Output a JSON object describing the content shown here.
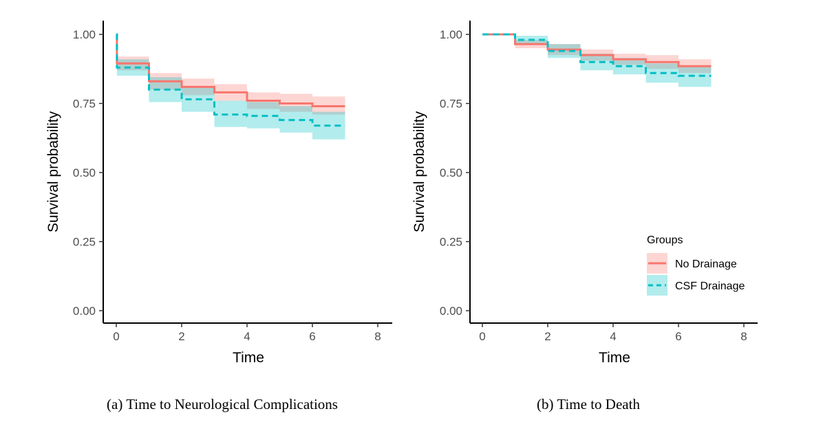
{
  "figure": {
    "legend": {
      "title": "Groups",
      "items": [
        {
          "label": "No Drainage",
          "color": "#F8766D",
          "fill": "#F8766D",
          "dash": "solid"
        },
        {
          "label": "CSF Drainage",
          "color": "#00BFC4",
          "fill": "#00BFC4",
          "dash": "dashed"
        }
      ]
    }
  },
  "chart_data": [
    {
      "type": "line",
      "subtype": "kaplan-meier-step",
      "caption": "(a) Time to Neurological Complications",
      "xlabel": "Time",
      "ylabel": "Survival probability",
      "xlim": [
        0,
        8
      ],
      "ylim": [
        0,
        1
      ],
      "xticks": [
        0,
        2,
        4,
        6,
        8
      ],
      "xtick_labels": [
        "0",
        "2",
        "4",
        "6",
        "8"
      ],
      "yticks": [
        0,
        0.25,
        0.5,
        0.75,
        1.0
      ],
      "ytick_labels": [
        "0.00",
        "0.25",
        "0.50",
        "0.75",
        "1.00"
      ],
      "grid": false,
      "legend": false,
      "series": [
        {
          "name": "No Drainage",
          "x": [
            0,
            0.02,
            1,
            2,
            3,
            4,
            5,
            6,
            7
          ],
          "values": [
            1.0,
            0.895,
            0.83,
            0.81,
            0.79,
            0.76,
            0.75,
            0.74,
            0.74
          ],
          "lower": [
            1.0,
            0.87,
            0.8,
            0.78,
            0.76,
            0.73,
            0.72,
            0.71,
            0.71
          ],
          "upper": [
            1.0,
            0.92,
            0.86,
            0.84,
            0.82,
            0.79,
            0.785,
            0.775,
            0.775
          ]
        },
        {
          "name": "CSF Drainage",
          "x": [
            0,
            0.02,
            1,
            2,
            3,
            4,
            5,
            6,
            7
          ],
          "values": [
            1.0,
            0.88,
            0.8,
            0.765,
            0.71,
            0.705,
            0.69,
            0.67,
            0.67
          ],
          "lower": [
            1.0,
            0.85,
            0.755,
            0.72,
            0.665,
            0.66,
            0.645,
            0.62,
            0.62
          ],
          "upper": [
            1.0,
            0.91,
            0.845,
            0.81,
            0.76,
            0.755,
            0.74,
            0.72,
            0.72
          ]
        }
      ]
    },
    {
      "type": "line",
      "subtype": "kaplan-meier-step",
      "caption": "(b) Time to Death",
      "xlabel": "Time",
      "ylabel": "Survival probability",
      "xlim": [
        0,
        8
      ],
      "ylim": [
        0,
        1
      ],
      "xticks": [
        0,
        2,
        4,
        6,
        8
      ],
      "xtick_labels": [
        "0",
        "2",
        "4",
        "6",
        "8"
      ],
      "yticks": [
        0,
        0.25,
        0.5,
        0.75,
        1.0
      ],
      "ytick_labels": [
        "0.00",
        "0.25",
        "0.50",
        "0.75",
        "1.00"
      ],
      "grid": false,
      "legend": true,
      "legend_position": "bottom-right",
      "series": [
        {
          "name": "No Drainage",
          "x": [
            0,
            1,
            2,
            3,
            4,
            5,
            6,
            7
          ],
          "values": [
            1.0,
            0.965,
            0.945,
            0.925,
            0.91,
            0.9,
            0.885,
            0.885
          ],
          "lower": [
            1.0,
            0.95,
            0.925,
            0.905,
            0.89,
            0.875,
            0.86,
            0.86
          ],
          "upper": [
            1.0,
            0.98,
            0.965,
            0.945,
            0.93,
            0.925,
            0.91,
            0.91
          ]
        },
        {
          "name": "CSF Drainage",
          "x": [
            0,
            1,
            2,
            3,
            4,
            5,
            6,
            7
          ],
          "values": [
            1.0,
            0.98,
            0.94,
            0.9,
            0.885,
            0.86,
            0.85,
            0.85
          ],
          "lower": [
            1.0,
            0.965,
            0.915,
            0.87,
            0.855,
            0.825,
            0.81,
            0.81
          ],
          "upper": [
            1.0,
            0.995,
            0.965,
            0.93,
            0.915,
            0.895,
            0.885,
            0.885
          ]
        }
      ]
    }
  ]
}
